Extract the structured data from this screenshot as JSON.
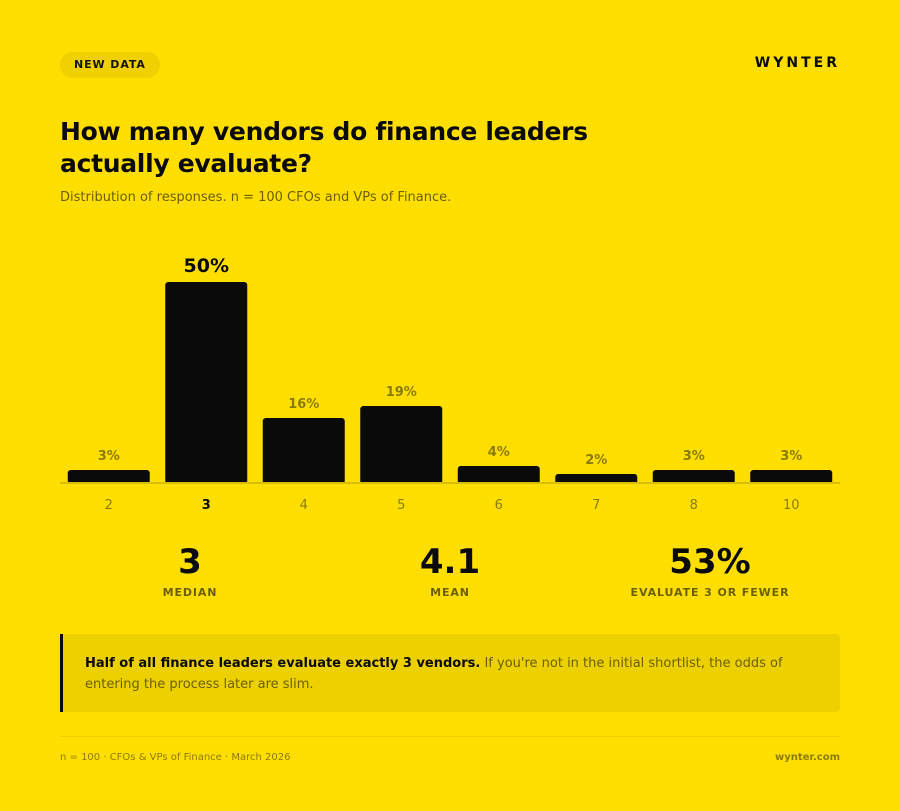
{
  "badge": "NEW DATA",
  "brand": "WYNTER",
  "title": "How many vendors do finance leaders actually evaluate?",
  "subtitle": "Distribution of responses. n = 100 CFOs and VPs of Finance.",
  "chart_data": {
    "type": "bar",
    "categories": [
      "2",
      "3",
      "4",
      "5",
      "6",
      "7",
      "8",
      "10"
    ],
    "values": [
      3,
      50,
      16,
      19,
      4,
      2,
      3,
      3
    ],
    "value_labels": [
      "3%",
      "50%",
      "16%",
      "19%",
      "4%",
      "2%",
      "3%",
      "3%"
    ],
    "highlight_category": "3",
    "title": "",
    "xlabel": "",
    "ylabel": "",
    "ylim": [
      0,
      50
    ],
    "grid": false,
    "legend": "none"
  },
  "stats": [
    {
      "value": "3",
      "label": "MEDIAN"
    },
    {
      "value": "4.1",
      "label": "MEAN"
    },
    {
      "value": "53%",
      "label": "EVALUATE 3 OR FEWER"
    }
  ],
  "callout": {
    "bold": "Half of all finance leaders evaluate exactly 3 vendors.",
    "text": " If you're not in the initial shortlist, the odds of entering the process later are slim."
  },
  "footer": {
    "left": "n = 100 · CFOs & VPs of Finance · March 2026",
    "right": "wynter.com"
  },
  "colors": {
    "background": "#FFDE00",
    "bar": "#0A0A0A",
    "muted_text": "#8A7C00",
    "callout_bg": "#EDD000"
  }
}
